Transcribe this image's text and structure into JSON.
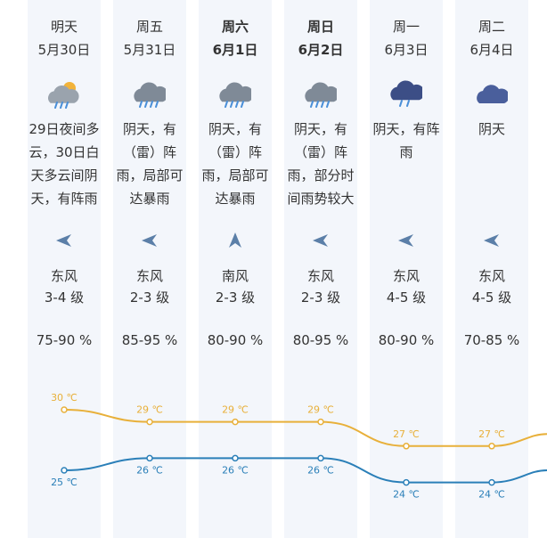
{
  "forecast": {
    "days": [
      {
        "day": "明天",
        "date": "5月30日",
        "bold": false,
        "icon": "partly-cloudy-rain-icon",
        "desc": "29日夜间多云，30日白天多云间阴天，有阵雨",
        "wind_dir": "东风",
        "wind_level": "3-4 级",
        "wind_icon": "wind-from-east-arrow-icon",
        "humidity": "75-90 %"
      },
      {
        "day": "周五",
        "date": "5月31日",
        "bold": false,
        "icon": "thunder-rain-cloud-icon",
        "desc": "阴天，有（雷）阵雨，局部可达暴雨",
        "wind_dir": "东风",
        "wind_level": "2-3 级",
        "wind_icon": "wind-from-east-arrow-icon",
        "humidity": "85-95 %"
      },
      {
        "day": "周六",
        "date": "6月1日",
        "bold": true,
        "icon": "thunder-rain-cloud-icon",
        "desc": "阴天，有（雷）阵雨，局部可达暴雨",
        "wind_dir": "南风",
        "wind_level": "2-3 级",
        "wind_icon": "wind-from-south-arrow-icon",
        "humidity": "80-90 %"
      },
      {
        "day": "周日",
        "date": "6月2日",
        "bold": true,
        "icon": "thunder-rain-cloud-icon",
        "desc": "阴天，有（雷）阵雨，部分时间雨势较大",
        "wind_dir": "东风",
        "wind_level": "2-3 级",
        "wind_icon": "wind-from-east-arrow-icon",
        "humidity": "80-95 %"
      },
      {
        "day": "周一",
        "date": "6月3日",
        "bold": false,
        "icon": "rain-cloud-icon",
        "desc": "阴天，有阵雨",
        "wind_dir": "东风",
        "wind_level": "4-5 级",
        "wind_icon": "wind-from-east-arrow-icon",
        "humidity": "80-90 %"
      },
      {
        "day": "周二",
        "date": "6月4日",
        "bold": false,
        "icon": "overcast-cloud-icon",
        "desc": "阴天",
        "wind_dir": "东风",
        "wind_level": "4-5 级",
        "wind_icon": "wind-from-east-arrow-icon",
        "humidity": "70-85 %"
      }
    ]
  },
  "chart_data": {
    "type": "line",
    "categories": [
      "5月30日",
      "5月31日",
      "6月1日",
      "6月2日",
      "6月3日",
      "6月4日"
    ],
    "unit": "℃",
    "series": [
      {
        "values": [
          30,
          29,
          29,
          29,
          27,
          27
        ],
        "color": "#e8b03a"
      },
      {
        "values": [
          25,
          26,
          26,
          26,
          24,
          24
        ],
        "color": "#2a7fb8"
      }
    ],
    "title": "",
    "xlabel": "",
    "ylabel": "",
    "grid": false,
    "legend": "none"
  },
  "colors": {
    "high_line": "#e8b03a",
    "low_line": "#2a7fb8",
    "column_bg": "#f3f6fb",
    "arrow": "#5b7fa8"
  }
}
